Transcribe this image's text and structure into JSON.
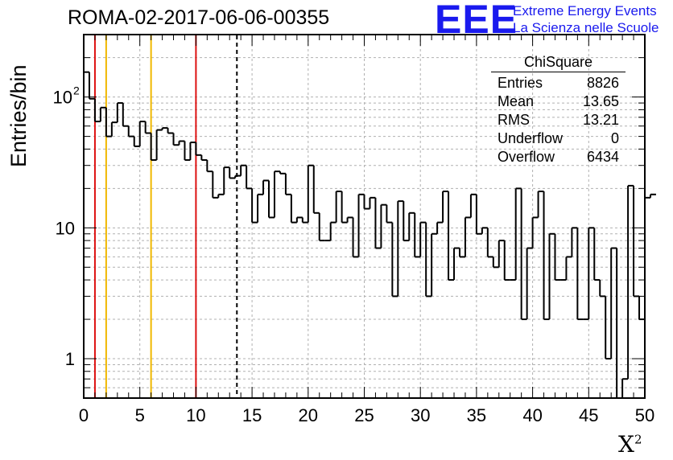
{
  "header": {
    "title": "ROMA-02-2017-06-06-00355",
    "logo_text": "EEE",
    "logo_line1": "Extreme Energy Events",
    "logo_line2": "La Scienza nelle Scuole"
  },
  "stats_box": {
    "title": "ChiSquare",
    "rows": [
      {
        "label": "Entries",
        "value": "8826"
      },
      {
        "label": "Mean",
        "value": "13.65"
      },
      {
        "label": "RMS",
        "value": "13.21"
      },
      {
        "label": "Underflow",
        "value": "0"
      },
      {
        "label": "Overflow",
        "value": "6434"
      }
    ]
  },
  "chart_data": {
    "type": "bar",
    "subtype": "step-histogram",
    "title": "ROMA-02-2017-06-06-00355",
    "xlabel": "X",
    "xlabel_superscript": "2",
    "ylabel": "Entries/bin",
    "xlim": [
      0,
      50
    ],
    "ylim": [
      0.5,
      300
    ],
    "yscale": "log",
    "grid": true,
    "x_ticks": [
      "0",
      "5",
      "10",
      "15",
      "20",
      "25",
      "30",
      "35",
      "40",
      "45",
      "50"
    ],
    "y_ticks": [
      {
        "value": 1,
        "label": "1"
      },
      {
        "value": 10,
        "label": "10"
      },
      {
        "value": 100,
        "label": "10",
        "exp": "2"
      }
    ],
    "bin_width": 0.5,
    "values": [
      155,
      97,
      65,
      83,
      50,
      64,
      90,
      60,
      50,
      42,
      65,
      53,
      33,
      56,
      58,
      53,
      43,
      46,
      33,
      45,
      36,
      33,
      27,
      17,
      18,
      29,
      24,
      25,
      30,
      20,
      11,
      18,
      23,
      12,
      27,
      26,
      18,
      11,
      12,
      11,
      30,
      13,
      8,
      8,
      11,
      19,
      11,
      12,
      6,
      18,
      14,
      17,
      7,
      15,
      11,
      3,
      16,
      8,
      13,
      6,
      11,
      3,
      9,
      11,
      19,
      4,
      7,
      6,
      12,
      18,
      9,
      10,
      6,
      5,
      8,
      4,
      4,
      20,
      2,
      7,
      12,
      19,
      2,
      9,
      4,
      4,
      6,
      10,
      2,
      2,
      10,
      4,
      3,
      1,
      7,
      0.4,
      0.7,
      21,
      3,
      2,
      17,
      18
    ],
    "reference_lines": [
      {
        "x": 1,
        "color": "#dd1111",
        "style": "solid"
      },
      {
        "x": 2,
        "color": "#f0b800",
        "style": "solid"
      },
      {
        "x": 6,
        "color": "#f0b800",
        "style": "solid"
      },
      {
        "x": 10,
        "color": "#dd1111",
        "style": "solid"
      },
      {
        "x": 13.65,
        "color": "#000000",
        "style": "dashed"
      }
    ],
    "colors": {
      "histogram": "#000000",
      "grid": "#b0b0b0"
    }
  }
}
